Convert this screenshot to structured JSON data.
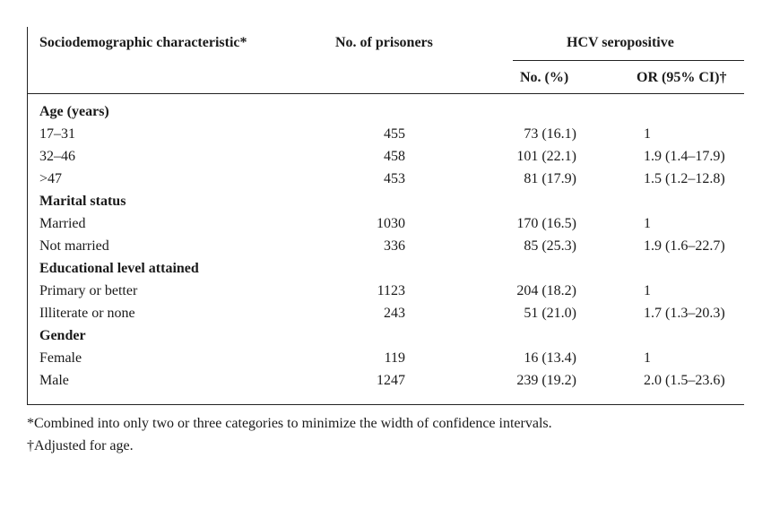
{
  "header": {
    "col_characteristic": "Sociodemographic characteristic*",
    "col_prisoners": "No. of prisoners",
    "col_group": "HCV seropositive",
    "col_no_pct": "No. (%)",
    "col_or": "OR (95% CI)†"
  },
  "rows": [
    {
      "kind": "section",
      "label": "Age (years)"
    },
    {
      "kind": "data",
      "label": "17–31",
      "n": "455",
      "pos": "73 (16.1)",
      "or": "1"
    },
    {
      "kind": "data",
      "label": "32–46",
      "n": "458",
      "pos": "101 (22.1)",
      "or": "1.9 (1.4–17.9)"
    },
    {
      "kind": "data",
      "label": ">47",
      "n": "453",
      "pos": "81 (17.9)",
      "or": "1.5 (1.2–12.8)"
    },
    {
      "kind": "section",
      "label": "Marital status"
    },
    {
      "kind": "data",
      "label": "Married",
      "n": "1030",
      "pos": "170 (16.5)",
      "or": "1"
    },
    {
      "kind": "data",
      "label": "Not married",
      "n": "336",
      "pos": "85 (25.3)",
      "or": "1.9 (1.6–22.7)"
    },
    {
      "kind": "section",
      "label": "Educational level attained"
    },
    {
      "kind": "data",
      "label": "Primary or better",
      "n": "1123",
      "pos": "204 (18.2)",
      "or": "1"
    },
    {
      "kind": "data",
      "label": "Illiterate or none",
      "n": "243",
      "pos": "51 (21.0)",
      "or": "1.7 (1.3–20.3)"
    },
    {
      "kind": "section",
      "label": "Gender"
    },
    {
      "kind": "data",
      "label": "Female",
      "n": "119",
      "pos": "16 (13.4)",
      "or": "1"
    },
    {
      "kind": "data",
      "label": "Male",
      "n": "1247",
      "pos": "239 (19.2)",
      "or": "2.0 (1.5–23.6)"
    }
  ],
  "footnotes": [
    "*Combined into only two or three categories to minimize the width of confidence intervals.",
    "†Adjusted for age."
  ]
}
